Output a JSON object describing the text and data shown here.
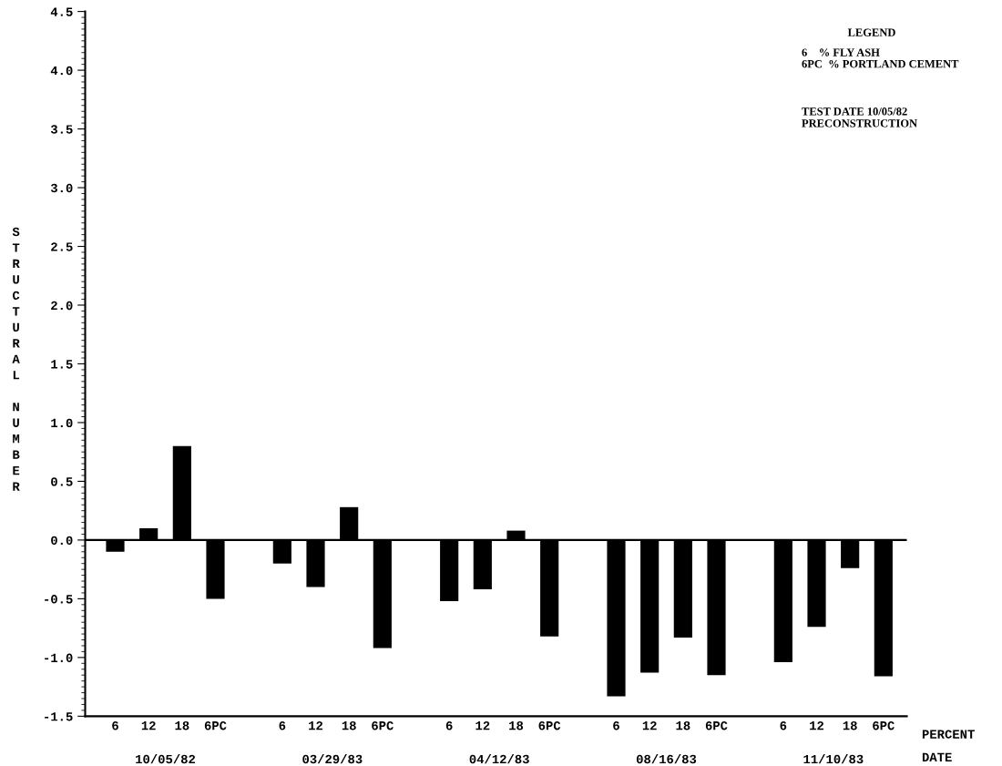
{
  "chart_data": {
    "type": "bar",
    "ylabel": "STRUCTURAL NUMBER",
    "categories": [
      "6",
      "12",
      "18",
      "6PC",
      null,
      "6",
      "12",
      "18",
      "6PC",
      null,
      "6",
      "12",
      "18",
      "6PC",
      null,
      "6",
      "12",
      "18",
      "6PC",
      null,
      "6",
      "12",
      "18",
      "6PC"
    ],
    "values": [
      -0.1,
      0.1,
      0.8,
      -0.5,
      null,
      -0.2,
      -0.4,
      0.28,
      -0.92,
      null,
      -0.52,
      -0.42,
      0.08,
      -0.82,
      null,
      -1.33,
      -1.13,
      -0.83,
      -1.15,
      null,
      -1.04,
      -0.74,
      -0.24,
      -1.16
    ],
    "color": "#000000",
    "ylim": [
      -1.5,
      4.5
    ],
    "yticks": [
      {
        "value": -1.5,
        "label": "-1.5"
      },
      {
        "value": -1.0,
        "label": "-1.0"
      },
      {
        "value": -0.5,
        "label": "-0.5"
      },
      {
        "value": 0.0,
        "label": "0.0"
      },
      {
        "value": 0.5,
        "label": "0.5"
      },
      {
        "value": 1.0,
        "label": "1.0"
      },
      {
        "value": 1.5,
        "label": "1.5"
      },
      {
        "value": 2.0,
        "label": "2.0"
      },
      {
        "value": 2.5,
        "label": "2.5"
      },
      {
        "value": 3.0,
        "label": "3.0"
      },
      {
        "value": 3.5,
        "label": "3.5"
      },
      {
        "value": 4.0,
        "label": "4.0"
      },
      {
        "value": 4.5,
        "label": "4.5"
      }
    ],
    "ref_lines": [
      {
        "axis": "y",
        "value": 0,
        "color": "#000000"
      }
    ],
    "grid": false,
    "annotations": [
      "LEGEND",
      "6    % FLY ASH",
      "6PC  % PORTLAND CEMENT",
      "TEST DATE 10/05/82\nPRECONSTRUCTION",
      "10/05/82",
      "03/29/83",
      "04/12/83",
      "08/16/83",
      "11/10/83",
      "PERCENT",
      "DATE"
    ]
  }
}
